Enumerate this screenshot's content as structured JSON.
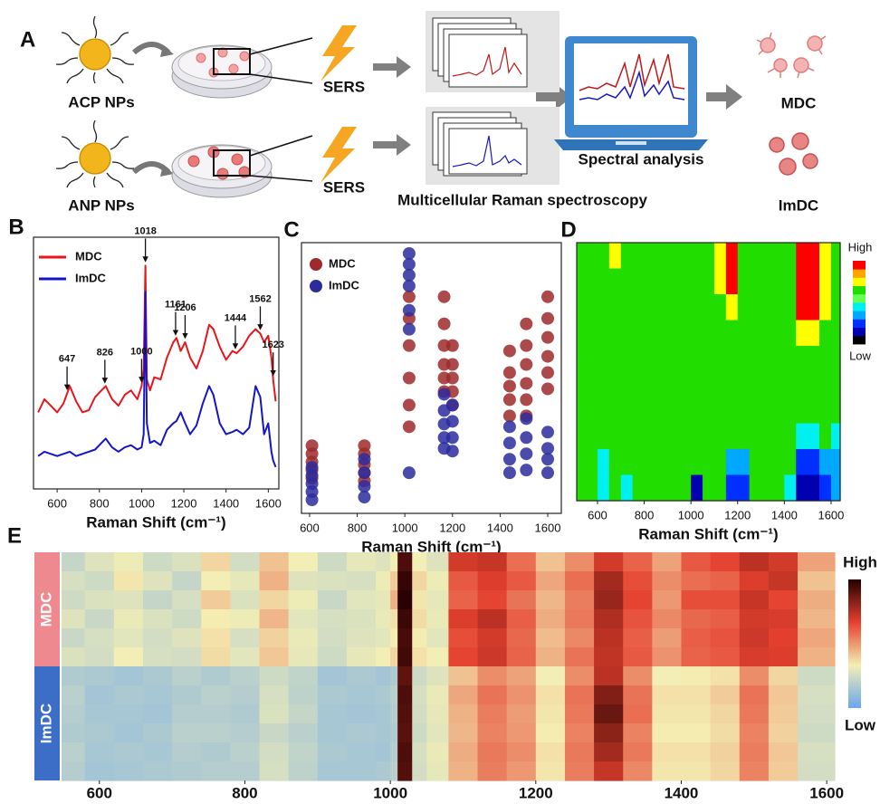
{
  "schematic": {
    "panel": "A",
    "particles": [
      "ACP NPs",
      "ANP NPs"
    ],
    "stimulus": [
      "SERS",
      "SERS"
    ],
    "method": "Multicellular Raman spectroscopy",
    "analysis": "Spectral analysis",
    "outcomes": [
      "MDC",
      "ImDC"
    ]
  },
  "chart_data": [
    {
      "type": "line",
      "panel": "B",
      "xlabel": "Raman Shift (cm⁻¹)",
      "frame": true,
      "x": [
        510,
        540,
        570,
        600,
        630,
        660,
        690,
        720,
        750,
        780,
        810,
        830,
        860,
        890,
        920,
        950,
        980,
        1000,
        1010,
        1018,
        1025,
        1040,
        1060,
        1090,
        1120,
        1150,
        1165,
        1185,
        1206,
        1230,
        1260,
        1290,
        1320,
        1340,
        1370,
        1400,
        1430,
        1450,
        1480,
        1510,
        1540,
        1562,
        1580,
        1600,
        1615,
        1623,
        1635
      ],
      "series": [
        {
          "name": "MDC",
          "color": "#e8161b",
          "values": [
            30,
            36,
            33,
            30,
            34,
            42,
            35,
            30,
            31,
            37,
            40,
            42,
            36,
            33,
            38,
            40,
            36,
            42,
            50,
            97,
            45,
            40,
            46,
            45,
            55,
            62,
            64,
            58,
            62,
            55,
            50,
            58,
            70,
            68,
            60,
            54,
            58,
            57,
            60,
            65,
            68,
            66,
            62,
            65,
            55,
            45,
            35
          ]
        },
        {
          "name": "ImDC",
          "color": "#1515c8",
          "values": [
            10,
            12,
            11,
            10,
            11,
            12,
            10,
            11,
            12,
            13,
            16,
            18,
            14,
            12,
            14,
            15,
            13,
            14,
            20,
            85,
            25,
            16,
            17,
            15,
            22,
            25,
            26,
            30,
            25,
            20,
            24,
            34,
            42,
            38,
            25,
            20,
            21,
            22,
            20,
            23,
            42,
            37,
            20,
            25,
            12,
            8,
            5
          ]
        }
      ],
      "peak_labels": [
        647,
        826,
        1000,
        1018,
        1161,
        1206,
        1444,
        1562,
        1623
      ],
      "xlim": [
        488,
        1650
      ],
      "xticks": [
        600,
        800,
        1000,
        1200,
        1400,
        1600
      ],
      "ylim": [
        -5,
        110
      ]
    },
    {
      "type": "scatter",
      "panel": "C",
      "xlabel": "Raman Shift (cm⁻¹)",
      "frame": true,
      "series": [
        {
          "name": "MDC",
          "color": "#9e2a2b",
          "x": [
            610,
            610,
            610,
            610,
            610,
            830,
            830,
            830,
            830,
            830,
            1018,
            1018,
            1018,
            1018,
            1018,
            1018,
            1165,
            1165,
            1165,
            1165,
            1165,
            1165,
            1200,
            1200,
            1200,
            1200,
            1200,
            1440,
            1440,
            1440,
            1440,
            1440,
            1510,
            1510,
            1510,
            1510,
            1510,
            1510,
            1600,
            1600,
            1600,
            1600,
            1600,
            1600
          ],
          "y": [
            25,
            22,
            19,
            16,
            13,
            25,
            22,
            18,
            15,
            12,
            80,
            72,
            62,
            50,
            40,
            32,
            80,
            70,
            62,
            55,
            50,
            45,
            62,
            55,
            50,
            45,
            40,
            60,
            52,
            47,
            42,
            36,
            70,
            62,
            55,
            48,
            42,
            36,
            80,
            72,
            65,
            58,
            52,
            46
          ]
        },
        {
          "name": "ImDC",
          "color": "#2b2b9e",
          "x": [
            610,
            610,
            610,
            610,
            610,
            830,
            830,
            830,
            830,
            1018,
            1018,
            1018,
            1018,
            1018,
            1018,
            1018,
            1165,
            1165,
            1165,
            1165,
            1165,
            1200,
            1200,
            1200,
            1200,
            1440,
            1440,
            1440,
            1440,
            1510,
            1510,
            1510,
            1510,
            1600,
            1600,
            1600,
            1600
          ],
          "y": [
            17,
            14,
            11,
            8,
            5,
            20,
            15,
            10,
            6,
            96,
            92,
            88,
            84,
            75,
            68,
            15,
            44,
            38,
            33,
            28,
            24,
            40,
            34,
            28,
            23,
            32,
            26,
            20,
            15,
            35,
            28,
            22,
            16,
            30,
            24,
            20,
            15
          ]
        }
      ],
      "xlim": [
        566,
        1657
      ],
      "xticks": [
        600,
        800,
        1000,
        1200,
        1400,
        1600
      ],
      "ylim": [
        0,
        100
      ]
    },
    {
      "type": "contour",
      "panel": "D",
      "xlabel": "Raman Shift (cm⁻¹)",
      "frame": true,
      "xbins": [
        511,
        550,
        600,
        650,
        700,
        750,
        800,
        850,
        900,
        950,
        1000,
        1050,
        1100,
        1150,
        1200,
        1250,
        1300,
        1350,
        1400,
        1450,
        1500,
        1550,
        1600,
        1639
      ],
      "colors": [
        "#000000",
        "#0000b0",
        "#0030ff",
        "#00a8ff",
        "#00f0f0",
        "#66ff55",
        "#22dd00",
        "#ffff00",
        "#ffa500",
        "#ff0000"
      ],
      "z": [
        [
          6,
          6,
          6,
          7,
          6,
          6,
          6,
          6,
          6,
          6,
          6,
          6,
          7,
          9,
          6,
          6,
          6,
          6,
          6,
          9,
          9,
          7,
          6
        ],
        [
          6,
          6,
          6,
          6,
          6,
          6,
          6,
          6,
          6,
          6,
          6,
          6,
          7,
          9,
          6,
          6,
          6,
          6,
          6,
          9,
          9,
          7,
          6
        ],
        [
          6,
          6,
          6,
          6,
          6,
          6,
          6,
          6,
          6,
          6,
          6,
          6,
          6,
          7,
          6,
          6,
          6,
          6,
          6,
          9,
          9,
          7,
          6
        ],
        [
          6,
          6,
          6,
          6,
          6,
          6,
          6,
          6,
          6,
          6,
          6,
          6,
          6,
          6,
          6,
          6,
          6,
          6,
          6,
          7,
          7,
          6,
          6
        ],
        [
          6,
          6,
          6,
          6,
          6,
          6,
          6,
          6,
          6,
          6,
          6,
          6,
          6,
          6,
          6,
          6,
          6,
          6,
          6,
          6,
          6,
          6,
          6
        ],
        [
          6,
          6,
          6,
          6,
          6,
          6,
          6,
          6,
          6,
          6,
          6,
          6,
          6,
          6,
          6,
          6,
          6,
          6,
          6,
          6,
          6,
          6,
          6
        ],
        [
          6,
          6,
          6,
          6,
          6,
          6,
          6,
          6,
          6,
          6,
          6,
          6,
          6,
          6,
          6,
          6,
          6,
          6,
          6,
          6,
          6,
          6,
          6
        ],
        [
          6,
          6,
          6,
          6,
          6,
          6,
          6,
          6,
          6,
          6,
          6,
          6,
          6,
          6,
          6,
          6,
          6,
          6,
          6,
          4,
          4,
          6,
          4
        ],
        [
          6,
          6,
          4,
          6,
          6,
          6,
          6,
          6,
          6,
          6,
          6,
          6,
          6,
          3,
          3,
          6,
          6,
          6,
          6,
          2,
          2,
          3,
          3
        ],
        [
          6,
          6,
          4,
          6,
          4,
          6,
          6,
          6,
          6,
          6,
          1,
          6,
          6,
          2,
          2,
          6,
          6,
          6,
          4,
          1,
          1,
          2,
          3
        ]
      ],
      "scale_labels": [
        "High",
        "Low"
      ],
      "xlim": [
        511,
        1639
      ],
      "xticks": [
        600,
        800,
        1000,
        1200,
        1400,
        1600
      ]
    },
    {
      "type": "heatmap",
      "panel": "E",
      "xbins": [
        548,
        580,
        620,
        660,
        700,
        740,
        780,
        820,
        860,
        900,
        940,
        980,
        1000,
        1010,
        1030,
        1050,
        1080,
        1120,
        1160,
        1200,
        1240,
        1280,
        1320,
        1360,
        1400,
        1440,
        1480,
        1520,
        1560,
        1611
      ],
      "colormap": [
        "#6aa6ee",
        "#f4efb4",
        "#e5402f",
        "#240000"
      ],
      "zlim": [
        0,
        100
      ],
      "groups": [
        {
          "name": "MDC",
          "color": "#ee8a8f",
          "z": [
            [
              22,
              28,
              32,
              24,
              27,
              38,
              25,
              42,
              33,
              24,
              30,
              28,
              33,
              93,
              33,
              28,
              70,
              72,
              58,
              42,
              52,
              70,
              60,
              48,
              62,
              66,
              74,
              70,
              48
            ],
            [
              26,
              24,
              35,
              28,
              22,
              33,
              30,
              45,
              28,
              27,
              26,
              32,
              40,
              97,
              38,
              32,
              62,
              68,
              62,
              47,
              58,
              78,
              64,
              52,
              58,
              60,
              68,
              72,
              42
            ],
            [
              24,
              27,
              28,
              22,
              26,
              40,
              27,
              38,
              32,
              23,
              29,
              30,
              45,
              99,
              35,
              30,
              60,
              66,
              57,
              44,
              55,
              80,
              66,
              50,
              64,
              64,
              72,
              66,
              46
            ],
            [
              28,
              23,
              31,
              27,
              24,
              34,
              32,
              44,
              29,
              26,
              27,
              31,
              36,
              96,
              37,
              31,
              68,
              74,
              61,
              46,
              56,
              76,
              63,
              53,
              59,
              61,
              70,
              69,
              44
            ],
            [
              23,
              26,
              29,
              25,
              28,
              36,
              26,
              39,
              31,
              25,
              28,
              29,
              34,
              94,
              34,
              29,
              64,
              70,
              59,
              43,
              53,
              74,
              61,
              49,
              61,
              63,
              71,
              67,
              47
            ],
            [
              27,
              25,
              33,
              26,
              25,
              37,
              29,
              41,
              30,
              24,
              30,
              33,
              38,
              95,
              36,
              33,
              66,
              71,
              60,
              45,
              57,
              73,
              62,
              51,
              60,
              62,
              69,
              68,
              45
            ]
          ]
        },
        {
          "name": "ImDC",
          "color": "#3c6ec8",
          "z": [
            [
              17,
              16,
              14,
              16,
              19,
              17,
              19,
              24,
              21,
              14,
              16,
              14,
              17,
              90,
              24,
              28,
              42,
              52,
              48,
              33,
              52,
              74,
              52,
              33,
              34,
              36,
              52,
              38,
              24
            ],
            [
              19,
              14,
              16,
              15,
              17,
              19,
              18,
              26,
              20,
              16,
              15,
              16,
              19,
              93,
              26,
              31,
              47,
              57,
              51,
              36,
              57,
              84,
              57,
              36,
              36,
              40,
              57,
              41,
              26
            ],
            [
              18,
              15,
              15,
              14,
              18,
              18,
              17,
              27,
              22,
              15,
              14,
              15,
              18,
              92,
              25,
              30,
              45,
              55,
              49,
              35,
              56,
              88,
              58,
              35,
              35,
              38,
              56,
              40,
              25
            ],
            [
              17,
              16,
              14,
              16,
              19,
              19,
              18,
              23,
              19,
              15,
              16,
              15,
              17,
              91,
              24,
              29,
              44,
              54,
              50,
              34,
              54,
              82,
              54,
              34,
              34,
              37,
              54,
              39,
              24
            ],
            [
              19,
              15,
              16,
              15,
              18,
              17,
              19,
              25,
              21,
              16,
              15,
              14,
              18,
              93,
              26,
              31,
              46,
              56,
              52,
              36,
              56,
              78,
              56,
              36,
              36,
              39,
              55,
              41,
              26
            ],
            [
              18,
              14,
              15,
              16,
              17,
              18,
              18,
              26,
              20,
              15,
              15,
              16,
              19,
              92,
              25,
              30,
              45,
              55,
              50,
              35,
              55,
              72,
              53,
              35,
              35,
              38,
              54,
              40,
              25
            ]
          ]
        }
      ],
      "scale_labels": [
        "High",
        "Low"
      ],
      "xlim": [
        548,
        1611
      ],
      "xticks": [
        600,
        800,
        1000,
        1200,
        1400,
        1600
      ]
    }
  ]
}
